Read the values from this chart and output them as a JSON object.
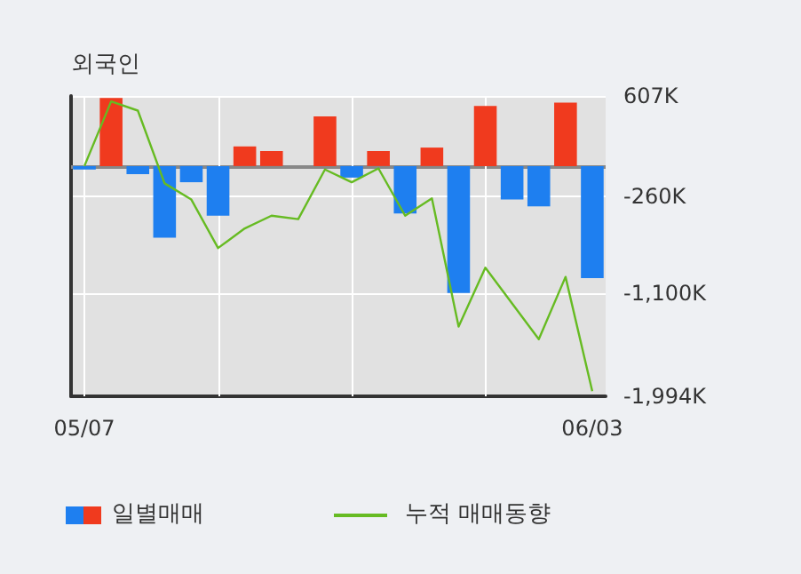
{
  "chart_data": {
    "type": "bar",
    "title": "외국인",
    "categories": [
      "05/07",
      null,
      null,
      null,
      null,
      null,
      null,
      null,
      null,
      null,
      null,
      null,
      null,
      null,
      null,
      null,
      null,
      null,
      null,
      "06/03"
    ],
    "series": [
      {
        "name": "일별매매",
        "colors": [
          "#1e7ff0",
          "#f03a1e",
          "#1e7ff0",
          "#1e7ff0",
          "#1e7ff0",
          "#1e7ff0",
          "#f03a1e",
          "#f03a1e",
          "#f03a1e",
          "#f03a1e",
          "#1e7ff0",
          "#f03a1e",
          "#1e7ff0",
          "#f03a1e",
          "#1e7ff0",
          "#f03a1e",
          "#1e7ff0",
          "#1e7ff0",
          "#f03a1e",
          "#1e7ff0"
        ],
        "values": [
          -30,
          590,
          -70,
          -620,
          -140,
          -430,
          170,
          130,
          0,
          430,
          -100,
          130,
          -410,
          160,
          -1100,
          520,
          -290,
          -350,
          550,
          -970
        ]
      },
      {
        "name": "누적 매매동향",
        "type": "line",
        "color": "#66bb22",
        "values": [
          0,
          560,
          480,
          -150,
          -290,
          -710,
          -540,
          -430,
          -460,
          -30,
          -140,
          -20,
          -430,
          -280,
          -1390,
          -880,
          -1190,
          -1500,
          -960,
          -1950
        ]
      }
    ],
    "ylim": [
      -1994,
      607
    ],
    "yticks": [
      {
        "value": 607,
        "label": "607K"
      },
      {
        "value": -260,
        "label": "-260K"
      },
      {
        "value": -1100,
        "label": "-1,100K"
      },
      {
        "value": -1994,
        "label": "-1,994K"
      }
    ],
    "ref_lines": [
      {
        "axis": "y",
        "value": 0,
        "color": "#888888"
      }
    ],
    "grid": true,
    "legend": "bottom",
    "marker": "none",
    "line_style": "solid"
  }
}
